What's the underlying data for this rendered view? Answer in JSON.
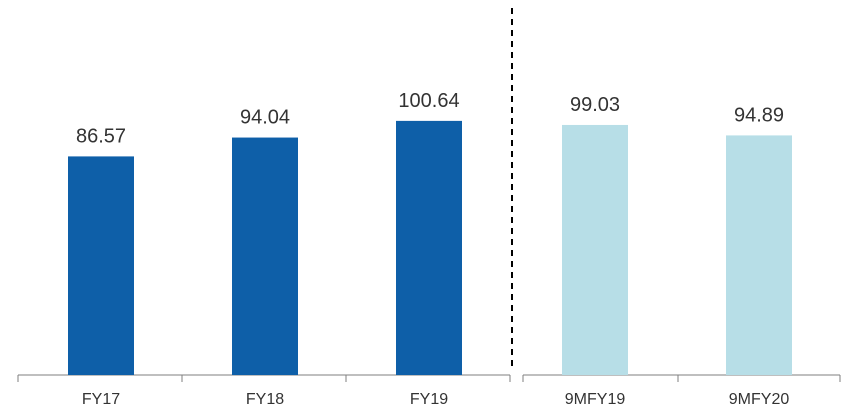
{
  "chart_data": {
    "type": "bar",
    "title": "",
    "xlabel": "",
    "ylabel": "",
    "ylim": [
      0,
      110
    ],
    "grid": false,
    "groups": [
      {
        "categories": [
          "FY17",
          "FY18",
          "FY19"
        ],
        "values": [
          86.57,
          94.04,
          100.64
        ],
        "labels": [
          "86.57",
          "94.04",
          "100.64"
        ],
        "color": "#0E5FA8"
      },
      {
        "categories": [
          "9MFY19",
          "9MFY20"
        ],
        "values": [
          99.03,
          94.89
        ],
        "labels": [
          "99.03",
          "94.89"
        ],
        "color": "#B7DEE7"
      }
    ],
    "separator": "dashed"
  }
}
